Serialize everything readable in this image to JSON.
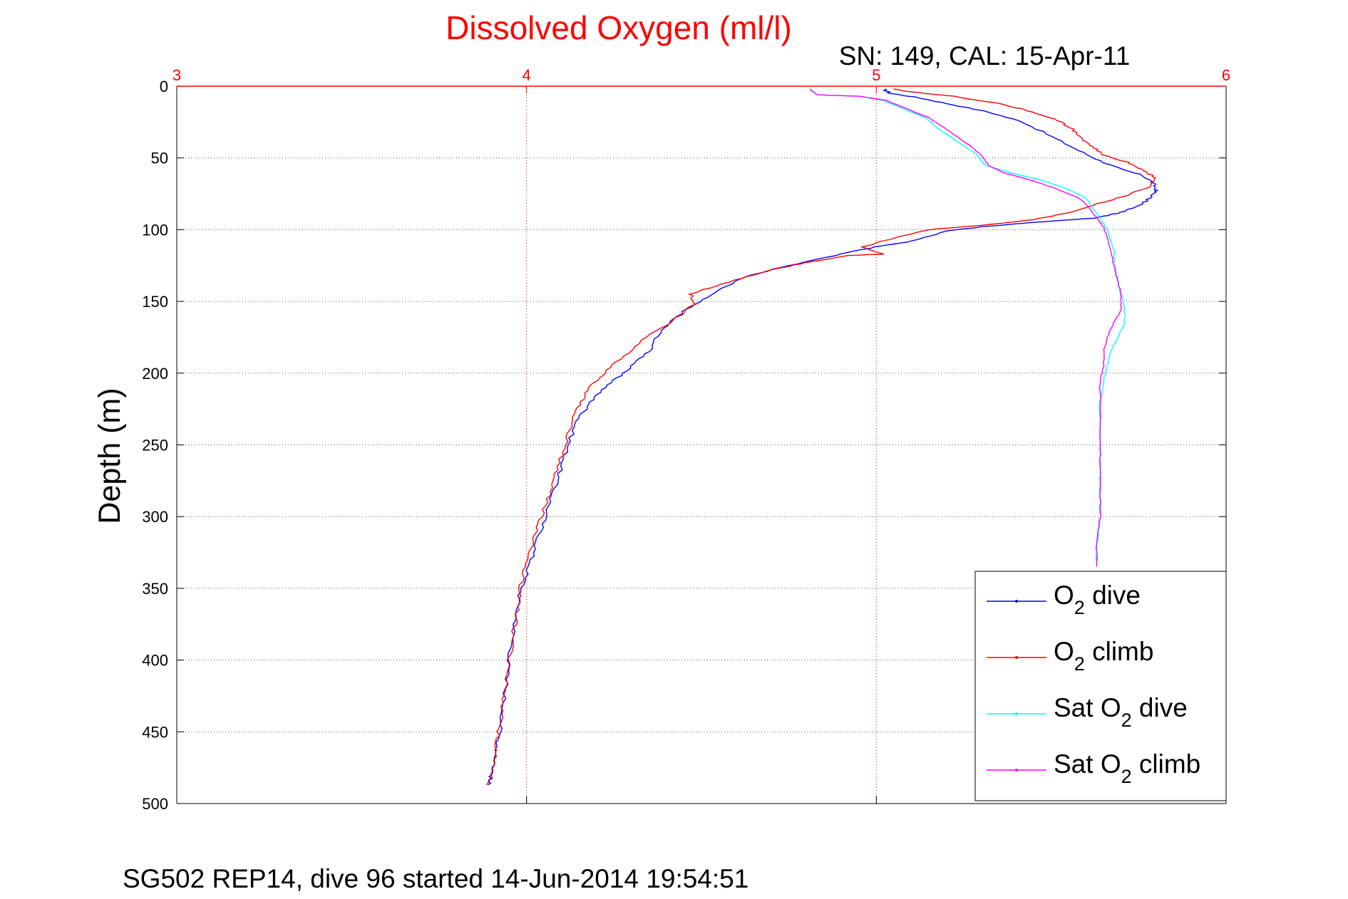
{
  "chart_data": {
    "type": "line",
    "title": "Dissolved Oxygen (ml/l)",
    "subtitle": "SN: 149, CAL: 15-Apr-11",
    "ylabel": "Depth (m)",
    "footer": "SG502 REP14, dive 96 started 14-Jun-2014 19:54:51",
    "xlim": [
      3,
      6
    ],
    "ylim": [
      0,
      500
    ],
    "y_reversed": true,
    "x_axis_position": "top",
    "x_ticks": [
      "3",
      "4",
      "5",
      "6"
    ],
    "y_ticks": [
      "0",
      "50",
      "100",
      "150",
      "200",
      "250",
      "300",
      "350",
      "400",
      "450",
      "500"
    ],
    "grid": true,
    "legend_position": "bottom-right",
    "colors": {
      "axis_top": "#ff0000",
      "grid": "#555555",
      "grid_x": "#ff0000"
    },
    "series": [
      {
        "name_parts": [
          "O",
          "2",
          " dive"
        ],
        "color": "#0000ff",
        "points": [
          [
            5.02,
            2
          ],
          [
            5.04,
            5
          ],
          [
            5.12,
            8
          ],
          [
            5.2,
            12
          ],
          [
            5.32,
            18
          ],
          [
            5.42,
            25
          ],
          [
            5.5,
            35
          ],
          [
            5.58,
            45
          ],
          [
            5.64,
            52
          ],
          [
            5.7,
            58
          ],
          [
            5.76,
            62
          ],
          [
            5.79,
            67
          ],
          [
            5.8,
            72
          ],
          [
            5.79,
            76
          ],
          [
            5.76,
            82
          ],
          [
            5.7,
            88
          ],
          [
            5.62,
            92
          ],
          [
            5.45,
            95
          ],
          [
            5.3,
            98
          ],
          [
            5.2,
            101
          ],
          [
            5.1,
            108
          ],
          [
            5.0,
            112
          ],
          [
            4.88,
            118
          ],
          [
            4.75,
            125
          ],
          [
            4.62,
            133
          ],
          [
            4.55,
            142
          ],
          [
            4.48,
            152
          ],
          [
            4.42,
            162
          ],
          [
            4.38,
            172
          ],
          [
            4.35,
            185
          ],
          [
            4.3,
            195
          ],
          [
            4.25,
            205
          ],
          [
            4.2,
            215
          ],
          [
            4.17,
            225
          ],
          [
            4.14,
            235
          ],
          [
            4.12,
            250
          ],
          [
            4.1,
            265
          ],
          [
            4.08,
            280
          ],
          [
            4.06,
            295
          ],
          [
            4.04,
            310
          ],
          [
            4.02,
            325
          ],
          [
            4.0,
            340
          ],
          [
            3.98,
            355
          ],
          [
            3.97,
            370
          ],
          [
            3.96,
            385
          ],
          [
            3.95,
            400
          ],
          [
            3.94,
            420
          ],
          [
            3.93,
            440
          ],
          [
            3.92,
            455
          ],
          [
            3.91,
            470
          ],
          [
            3.9,
            480
          ],
          [
            3.89,
            487
          ]
        ]
      },
      {
        "name_parts": [
          "O",
          "2",
          " climb"
        ],
        "color": "#ff0000",
        "points": [
          [
            3.89,
            487
          ],
          [
            3.9,
            478
          ],
          [
            3.91,
            465
          ],
          [
            3.92,
            450
          ],
          [
            3.93,
            435
          ],
          [
            3.94,
            420
          ],
          [
            3.95,
            400
          ],
          [
            3.96,
            385
          ],
          [
            3.97,
            370
          ],
          [
            3.98,
            355
          ],
          [
            3.99,
            340
          ],
          [
            4.01,
            325
          ],
          [
            4.03,
            310
          ],
          [
            4.05,
            295
          ],
          [
            4.07,
            280
          ],
          [
            4.09,
            265
          ],
          [
            4.11,
            250
          ],
          [
            4.13,
            235
          ],
          [
            4.15,
            222
          ],
          [
            4.18,
            210
          ],
          [
            4.22,
            200
          ],
          [
            4.28,
            188
          ],
          [
            4.34,
            175
          ],
          [
            4.42,
            163
          ],
          [
            4.48,
            152
          ],
          [
            4.47,
            145
          ],
          [
            4.53,
            140
          ],
          [
            4.6,
            135
          ],
          [
            4.7,
            128
          ],
          [
            4.8,
            123
          ],
          [
            4.92,
            118
          ],
          [
            5.02,
            117
          ],
          [
            4.96,
            112
          ],
          [
            5.05,
            106
          ],
          [
            5.15,
            100
          ],
          [
            5.3,
            97
          ],
          [
            5.45,
            93
          ],
          [
            5.55,
            88
          ],
          [
            5.63,
            82
          ],
          [
            5.72,
            76
          ],
          [
            5.78,
            70
          ],
          [
            5.8,
            64
          ],
          [
            5.76,
            58
          ],
          [
            5.72,
            53
          ],
          [
            5.65,
            48
          ],
          [
            5.62,
            42
          ],
          [
            5.59,
            37
          ],
          [
            5.56,
            30
          ],
          [
            5.52,
            24
          ],
          [
            5.45,
            18
          ],
          [
            5.35,
            12
          ],
          [
            5.22,
            7
          ],
          [
            5.1,
            4
          ],
          [
            5.05,
            2
          ]
        ]
      },
      {
        "name_parts": [
          "Sat O",
          "2",
          " dive"
        ],
        "color": "#00ffff",
        "points": [
          [
            4.81,
            2
          ],
          [
            4.83,
            6
          ],
          [
            4.95,
            7
          ],
          [
            5.02,
            10
          ],
          [
            5.08,
            16
          ],
          [
            5.14,
            22
          ],
          [
            5.18,
            30
          ],
          [
            5.24,
            40
          ],
          [
            5.29,
            48
          ],
          [
            5.31,
            55
          ],
          [
            5.38,
            60
          ],
          [
            5.48,
            66
          ],
          [
            5.55,
            72
          ],
          [
            5.6,
            78
          ],
          [
            5.62,
            85
          ],
          [
            5.64,
            92
          ],
          [
            5.66,
            100
          ],
          [
            5.67,
            108
          ],
          [
            5.68,
            115
          ],
          [
            5.68,
            125
          ],
          [
            5.69,
            135
          ],
          [
            5.7,
            145
          ],
          [
            5.71,
            155
          ],
          [
            5.71,
            165
          ],
          [
            5.69,
            175
          ],
          [
            5.67,
            185
          ],
          [
            5.66,
            195
          ],
          [
            5.65,
            205
          ],
          [
            5.64,
            220
          ],
          [
            5.64,
            240
          ],
          [
            5.64,
            260
          ],
          [
            5.64,
            280
          ],
          [
            5.64,
            300
          ],
          [
            5.63,
            320
          ],
          [
            5.63,
            335
          ]
        ]
      },
      {
        "name_parts": [
          "Sat O",
          "2",
          " climb"
        ],
        "color": "#ff00ff",
        "points": [
          [
            5.63,
            335
          ],
          [
            5.63,
            320
          ],
          [
            5.64,
            300
          ],
          [
            5.64,
            280
          ],
          [
            5.64,
            260
          ],
          [
            5.64,
            240
          ],
          [
            5.64,
            220
          ],
          [
            5.64,
            205
          ],
          [
            5.65,
            195
          ],
          [
            5.65,
            185
          ],
          [
            5.66,
            175
          ],
          [
            5.68,
            165
          ],
          [
            5.7,
            155
          ],
          [
            5.7,
            145
          ],
          [
            5.69,
            135
          ],
          [
            5.68,
            125
          ],
          [
            5.67,
            115
          ],
          [
            5.66,
            105
          ],
          [
            5.65,
            98
          ],
          [
            5.63,
            92
          ],
          [
            5.61,
            85
          ],
          [
            5.58,
            78
          ],
          [
            5.52,
            72
          ],
          [
            5.45,
            66
          ],
          [
            5.36,
            60
          ],
          [
            5.32,
            55
          ],
          [
            5.3,
            48
          ],
          [
            5.26,
            40
          ],
          [
            5.2,
            30
          ],
          [
            5.15,
            22
          ],
          [
            5.09,
            16
          ],
          [
            5.03,
            10
          ],
          [
            4.95,
            7
          ],
          [
            4.83,
            6
          ],
          [
            4.81,
            2
          ]
        ]
      }
    ]
  }
}
